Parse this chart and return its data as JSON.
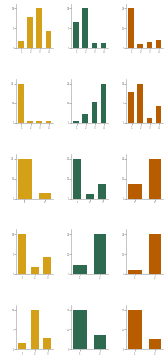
{
  "colors": [
    "#D4A017",
    "#2D6A4F",
    "#B85C00"
  ],
  "background": "#FFFFFF",
  "rows": [
    {
      "charts": [
        {
          "values": [
            3,
            14,
            18,
            8
          ],
          "color_idx": 0
        },
        {
          "values": [
            12,
            18,
            2,
            2
          ],
          "color_idx": 1
        },
        {
          "values": [
            22,
            2,
            3,
            4
          ],
          "color_idx": 2
        }
      ]
    },
    {
      "charts": [
        {
          "values": [
            22,
            1,
            1,
            1
          ],
          "color_idx": 0
        },
        {
          "values": [
            1,
            5,
            12,
            22
          ],
          "color_idx": 1
        },
        {
          "values": [
            11,
            14,
            2,
            6
          ],
          "color_idx": 2
        }
      ]
    },
    {
      "charts": [
        {
          "values": [
            22,
            3
          ],
          "color_idx": 0
        },
        {
          "values": [
            20,
            2,
            7
          ],
          "color_idx": 1
        },
        {
          "values": [
            8,
            22
          ],
          "color_idx": 2
        }
      ]
    },
    {
      "charts": [
        {
          "values": [
            18,
            3,
            8
          ],
          "color_idx": 0
        },
        {
          "values": [
            5,
            22
          ],
          "color_idx": 1
        },
        {
          "values": [
            2,
            22
          ],
          "color_idx": 2
        }
      ]
    },
    {
      "charts": [
        {
          "values": [
            3,
            18,
            5
          ],
          "color_idx": 0
        },
        {
          "values": [
            22,
            8
          ],
          "color_idx": 1
        },
        {
          "values": [
            20,
            5
          ],
          "color_idx": 2
        }
      ]
    }
  ]
}
